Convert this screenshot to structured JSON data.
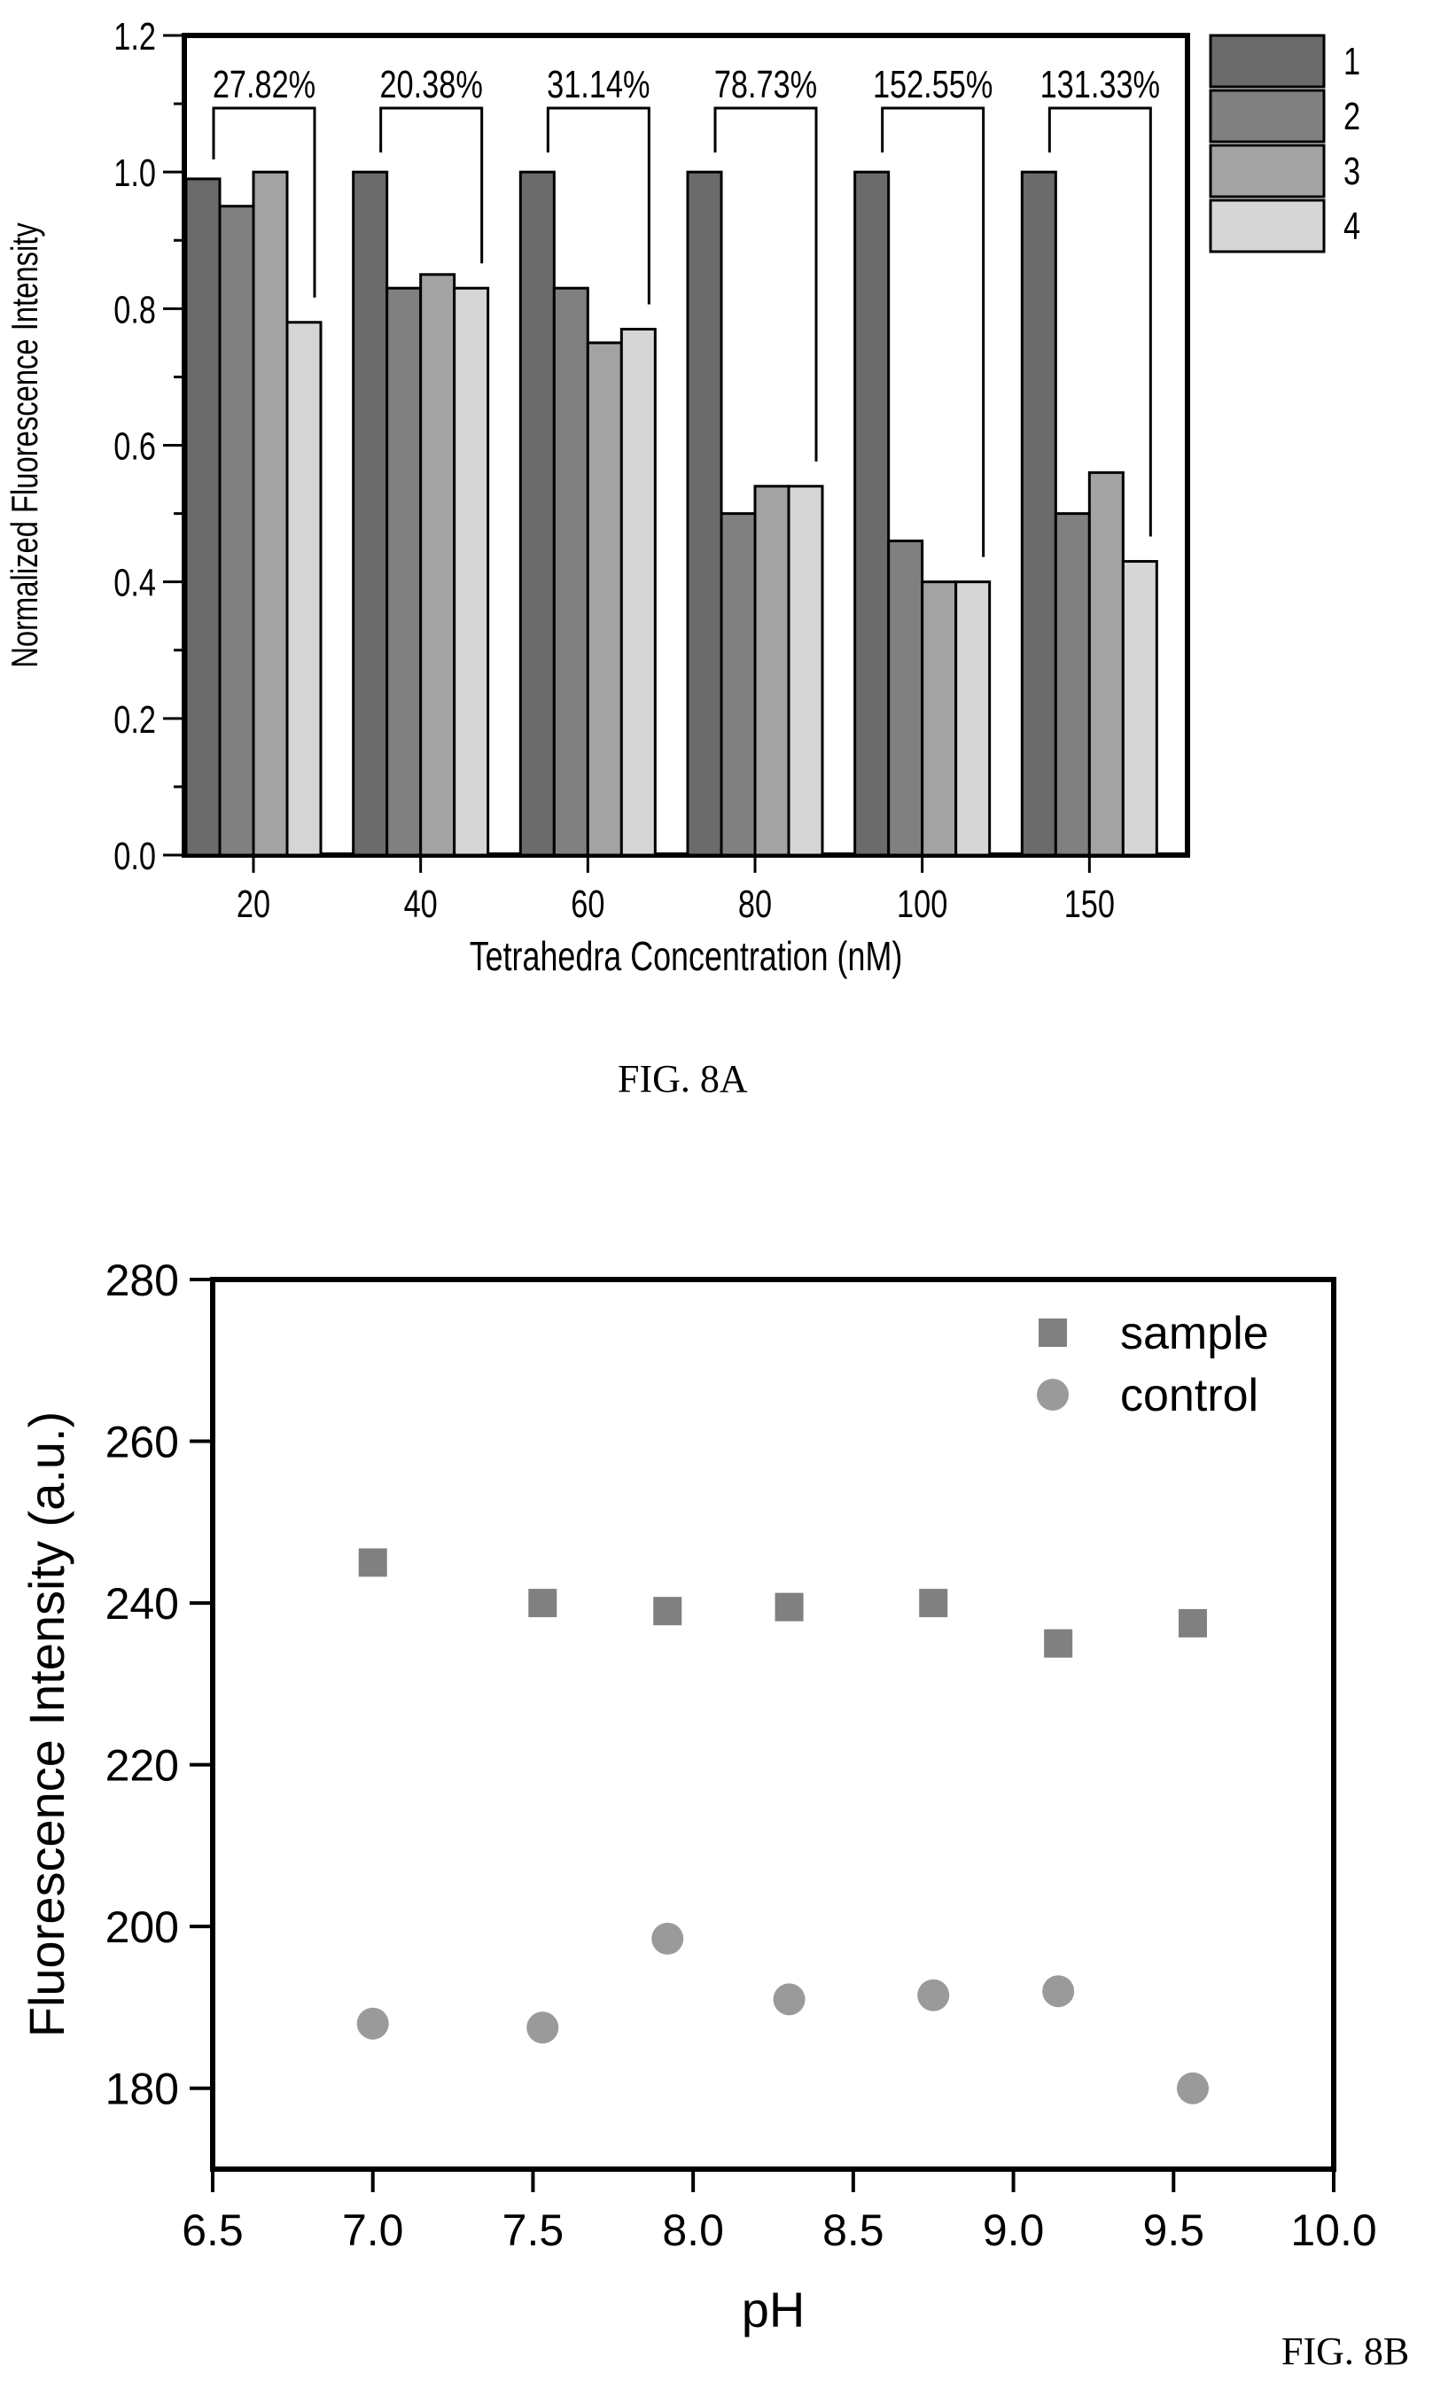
{
  "chart_data": [
    {
      "type": "bar",
      "caption": "FIG. 8A",
      "xlabel": "Tetrahedra Concentration (nM)",
      "ylabel": "Normalized Fluorescence Intensity",
      "ylim": [
        0,
        1.2
      ],
      "yticks": [
        "0.0",
        "0.2",
        "0.4",
        "0.6",
        "0.8",
        "1.0",
        "1.2"
      ],
      "categories": [
        "20",
        "40",
        "60",
        "80",
        "100",
        "150"
      ],
      "series": [
        {
          "name": "1",
          "color": "#6b6b6b",
          "values": [
            0.99,
            1.0,
            1.0,
            1.0,
            1.0,
            1.0
          ]
        },
        {
          "name": "2",
          "color": "#808080",
          "values": [
            0.95,
            0.83,
            0.83,
            0.5,
            0.46,
            0.5
          ]
        },
        {
          "name": "3",
          "color": "#a3a3a3",
          "values": [
            1.0,
            0.85,
            0.75,
            0.54,
            0.4,
            0.56
          ]
        },
        {
          "name": "4",
          "color": "#d6d6d6",
          "values": [
            0.78,
            0.83,
            0.77,
            0.54,
            0.4,
            0.43
          ]
        }
      ],
      "annotations": [
        "27.82%",
        "20.38%",
        "31.14%",
        "78.73%",
        "152.55%",
        "131.33%"
      ],
      "legend_position": "right-top",
      "grid": false
    },
    {
      "type": "scatter",
      "caption": "FIG. 8B",
      "xlabel": "pH",
      "ylabel": "Fluorescence Intensity (a.u.)",
      "xlim": [
        6.5,
        10.0
      ],
      "ylim": [
        170,
        280
      ],
      "xticks": [
        "6.5",
        "7.0",
        "7.5",
        "8.0",
        "8.5",
        "9.0",
        "9.5",
        "10.0"
      ],
      "yticks": [
        "180",
        "200",
        "220",
        "240",
        "260",
        "280"
      ],
      "series": [
        {
          "name": "sample",
          "marker": "square",
          "color": "#808080",
          "x": [
            7.0,
            7.53,
            7.92,
            8.3,
            8.75,
            9.14,
            9.56
          ],
          "y": [
            245,
            240,
            239,
            239.5,
            240,
            235,
            237.5
          ]
        },
        {
          "name": "control",
          "marker": "circle",
          "color": "#9a9a9a",
          "x": [
            7.0,
            7.53,
            7.92,
            8.3,
            8.75,
            9.14,
            9.56
          ],
          "y": [
            188,
            187.5,
            198.5,
            191,
            191.5,
            192,
            180
          ]
        }
      ],
      "legend_position": "top-right",
      "grid": false
    }
  ]
}
